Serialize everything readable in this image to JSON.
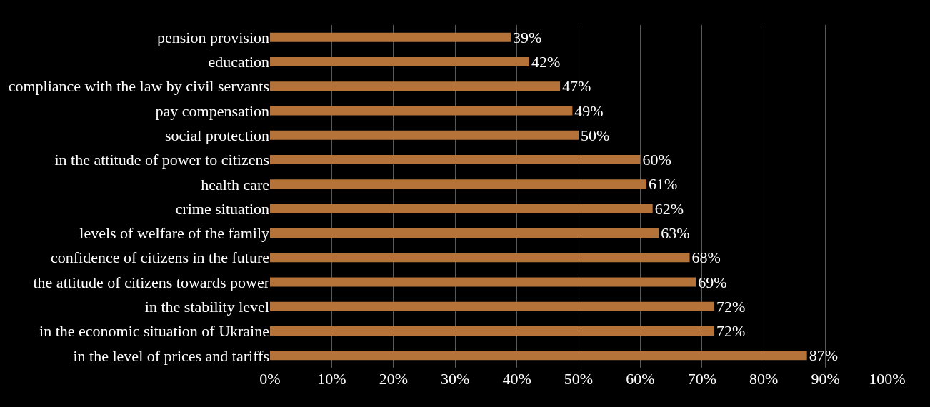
{
  "chart_data": {
    "type": "bar",
    "orientation": "horizontal",
    "categories": [
      "pension provision",
      "education",
      "compliance with the law by civil servants",
      "pay compensation",
      "social protection",
      "in the attitude of power to citizens",
      "health care",
      "crime situation",
      "levels of welfare of the family",
      "confidence of citizens in the future",
      "the attitude of citizens towards power",
      "in the stability level",
      "in the economic situation of Ukraine",
      "in the level of prices and tariffs"
    ],
    "values": [
      39,
      42,
      47,
      49,
      50,
      60,
      61,
      62,
      63,
      68,
      69,
      72,
      72,
      87
    ],
    "value_labels": [
      "39%",
      "42%",
      "47%",
      "49%",
      "50%",
      "60%",
      "61%",
      "62%",
      "63%",
      "68%",
      "69%",
      "72%",
      "72%",
      "87%"
    ],
    "color": "#b5733a",
    "xlim": [
      0,
      100
    ],
    "xticks": [
      {
        "value": 0,
        "label": "0%"
      },
      {
        "value": 10,
        "label": "10%"
      },
      {
        "value": 20,
        "label": "20%"
      },
      {
        "value": 30,
        "label": "30%"
      },
      {
        "value": 40,
        "label": "40%"
      },
      {
        "value": 50,
        "label": "50%"
      },
      {
        "value": 60,
        "label": "60%"
      },
      {
        "value": 70,
        "label": "70%"
      },
      {
        "value": 80,
        "label": "80%"
      },
      {
        "value": 90,
        "label": "90%"
      },
      {
        "value": 100,
        "label": "100%"
      }
    ],
    "grid": "x"
  }
}
